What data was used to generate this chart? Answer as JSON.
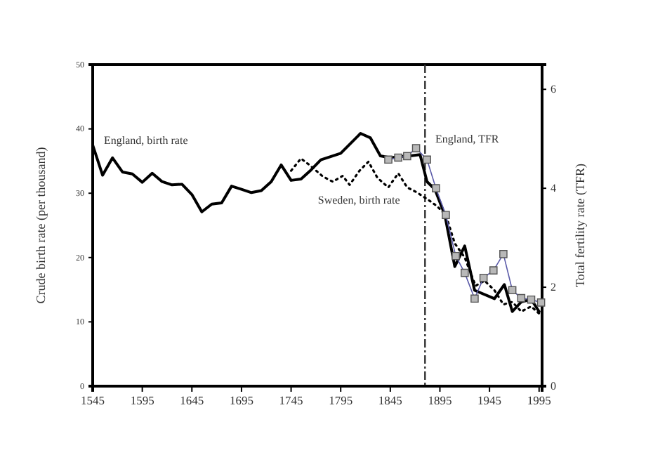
{
  "chart_data": {
    "type": "line",
    "xlabel": null,
    "ylabel": "Crude birth rate (per thousand)",
    "y2label": "Total fertility rate (TFR)",
    "xlim": [
      1545,
      1998
    ],
    "xticks": [
      1545,
      1595,
      1645,
      1695,
      1745,
      1795,
      1845,
      1895,
      1945,
      1995
    ],
    "ylim": [
      0,
      50
    ],
    "yticks": [
      0,
      10,
      20,
      30,
      40,
      50
    ],
    "y2lim": [
      0,
      6.5
    ],
    "y2ticks": [
      0,
      2,
      4,
      6
    ],
    "legend": false,
    "grid": false,
    "ref_lines": [
      {
        "axis": "x",
        "value": 1880,
        "line_style": "dashdot",
        "color": "#333333"
      }
    ],
    "series": [
      {
        "name": "England, birth rate",
        "color": "#000000",
        "line_style": "solid",
        "marker": "none",
        "x": [
          1545,
          1555,
          1565,
          1575,
          1585,
          1595,
          1605,
          1615,
          1625,
          1635,
          1645,
          1655,
          1665,
          1675,
          1685,
          1695,
          1705,
          1715,
          1725,
          1735,
          1745,
          1755,
          1765,
          1775,
          1795,
          1815,
          1825,
          1835,
          1845,
          1855,
          1865,
          1875,
          1882,
          1890,
          1900,
          1910,
          1920,
          1930,
          1950,
          1960,
          1968,
          1977,
          1987,
          1995
        ],
        "values": [
          37.5,
          32.8,
          35.5,
          33.3,
          33.0,
          31.7,
          33.1,
          31.8,
          31.3,
          31.4,
          29.8,
          27.1,
          28.3,
          28.5,
          31.1,
          30.6,
          30.1,
          30.4,
          31.8,
          34.4,
          32.0,
          32.2,
          33.6,
          35.2,
          36.2,
          39.3,
          38.6,
          35.8,
          35.5,
          35.7,
          35.8,
          36.0,
          31.8,
          30.6,
          26.6,
          18.6,
          21.8,
          14.9,
          13.6,
          15.8,
          11.6,
          13.1,
          13.5,
          11.6
        ]
      },
      {
        "name": "Sweden, birth rate",
        "color": "#000000",
        "line_style": "dotted",
        "marker": "none",
        "x": [
          1745,
          1755,
          1765,
          1777,
          1787,
          1797,
          1804,
          1814,
          1823,
          1832,
          1843,
          1853,
          1862,
          1871,
          1882,
          1892,
          1901,
          1910,
          1920,
          1931,
          1940,
          1950,
          1959,
          1968,
          1977,
          1987,
          1995
        ],
        "values": [
          33.5,
          35.4,
          34.2,
          32.6,
          31.8,
          32.7,
          31.3,
          33.5,
          34.9,
          32.4,
          30.9,
          33.1,
          30.9,
          30.2,
          29.1,
          28.0,
          26.6,
          22.2,
          20.0,
          15.6,
          16.4,
          14.9,
          12.7,
          13.1,
          11.6,
          12.4,
          11.3
        ]
      },
      {
        "name": "England, TFR",
        "axis": "y2",
        "color": "#5a5aa8",
        "line_style": "solid",
        "marker": "square",
        "x": [
          1843,
          1853,
          1862,
          1871,
          1882,
          1891,
          1901,
          1911,
          1920,
          1930,
          1939,
          1949,
          1959,
          1968,
          1977,
          1987,
          1997
        ],
        "values": [
          4.58,
          4.62,
          4.65,
          4.81,
          4.58,
          4.0,
          3.46,
          2.63,
          2.29,
          1.77,
          2.19,
          2.34,
          2.67,
          1.94,
          1.78,
          1.75,
          1.69
        ]
      }
    ]
  }
}
